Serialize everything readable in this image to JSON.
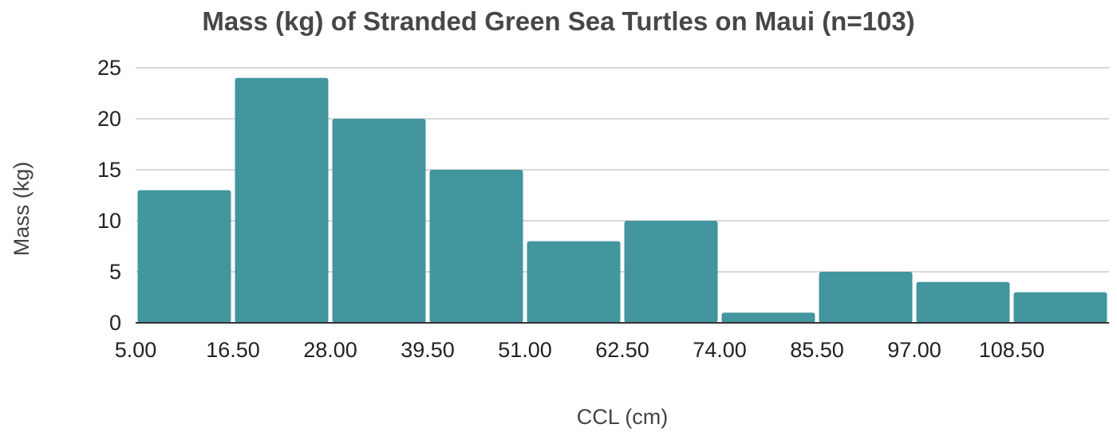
{
  "chart_data": {
    "type": "bar",
    "title": "Mass (kg) of Stranded Green Sea Turtles on Maui (n=103)",
    "xlabel": "CCL (cm)",
    "ylabel": "Mass (kg)",
    "x_tick_labels": [
      "5.00",
      "16.50",
      "28.00",
      "39.50",
      "51.00",
      "62.50",
      "74.00",
      "85.50",
      "97.00",
      "108.50"
    ],
    "y_tick_labels": [
      "0",
      "5",
      "10",
      "15",
      "20",
      "25"
    ],
    "bin_start": 5.0,
    "bin_width": 11.5,
    "values": [
      13,
      24,
      20,
      15,
      8,
      10,
      1,
      5,
      4,
      3
    ],
    "ylim": [
      0,
      25
    ],
    "grid": true,
    "legend": "none",
    "colors": {
      "bar": "#43959e"
    }
  }
}
